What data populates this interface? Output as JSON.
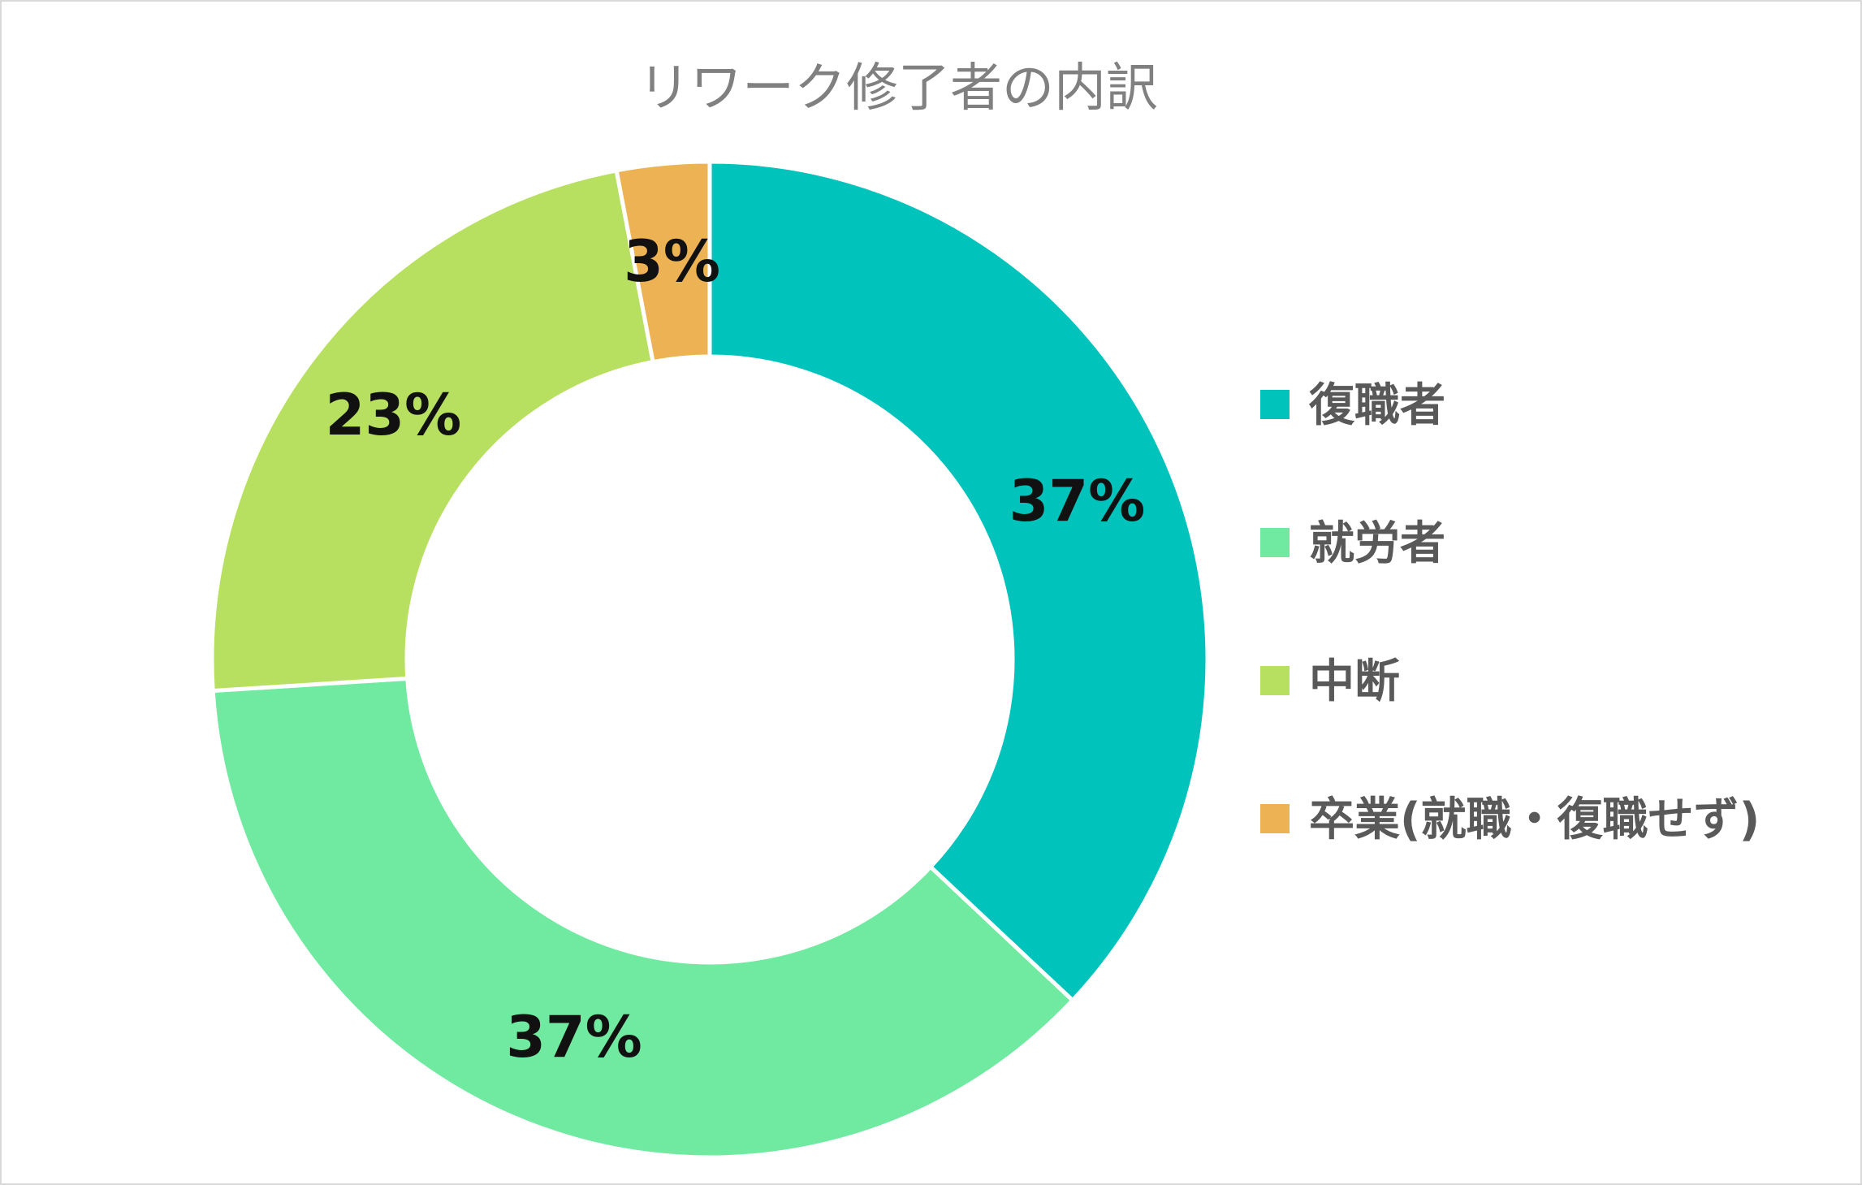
{
  "chart_data": {
    "type": "pie",
    "variant": "donut",
    "title": "リワーク修了者の内訳",
    "categories": [
      "復職者",
      "就労者",
      "中断",
      "卒業(就職・復職せず)"
    ],
    "values": [
      37,
      37,
      23,
      3
    ],
    "labels": [
      "37%",
      "37%",
      "23%",
      "3%"
    ],
    "colors": [
      "#00C4BC",
      "#70EAA0",
      "#B8E060",
      "#EDB254"
    ],
    "legend_position": "right"
  }
}
